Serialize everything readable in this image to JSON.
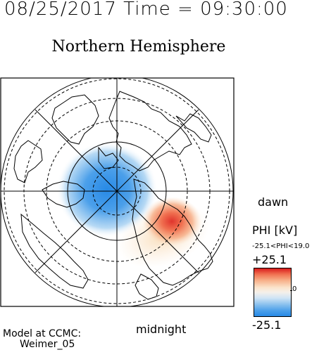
{
  "header": {
    "time_stamp": "08/25/2017 Time = 09:30:00"
  },
  "map": {
    "title": "Northern Hemisphere",
    "projection": "polar",
    "orientation_labels": {
      "dawn": "dawn",
      "midnight": "midnight"
    },
    "latitude_circles": "dashed",
    "meridians": "solid radial lines every 45 degrees",
    "potential_pattern": [
      {
        "cell": "negative",
        "color": "#2789e6",
        "location": "near pole, dusk side"
      },
      {
        "cell": "positive",
        "color": "#d91c1c",
        "location": "dawn side, towards midnight"
      }
    ]
  },
  "colorbar": {
    "title": "PHI [kV]",
    "range_text": "-25.1<PHI<19.0",
    "max_label": "+25.1",
    "min_label": "-25.1",
    "zero_label": "0",
    "colors": {
      "max": "#d91c1c",
      "mid": "#f5f0ea",
      "min": "#2789e6"
    }
  },
  "credit": {
    "line1": "Model at CCMC:",
    "line2": "Weimer_05"
  }
}
